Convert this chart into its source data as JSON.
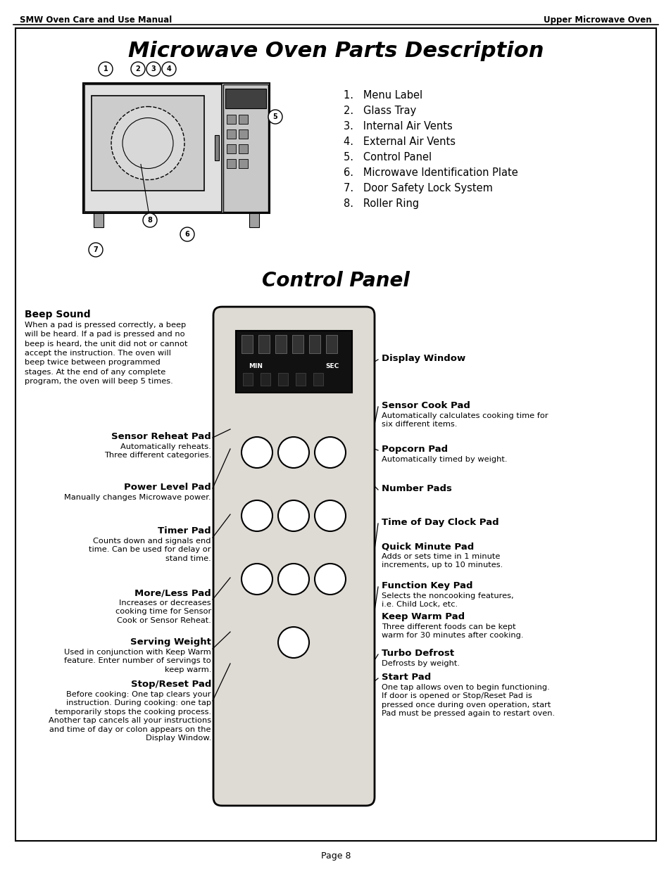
{
  "bg_color": "#ffffff",
  "header_left": "SMW Oven Care and Use Manual",
  "header_right": "Upper Microwave Oven",
  "main_title": "Microwave Oven Parts Description",
  "section2_title": "Control Panel",
  "footer": "Page 8",
  "parts_list": [
    "1.   Menu Label",
    "2.   Glass Tray",
    "3.   Internal Air Vents",
    "4.   External Air Vents",
    "5.   Control Panel",
    "6.   Microwave Identification Plate",
    "7.   Door Safety Lock System",
    "8.   Roller Ring"
  ],
  "beep_sound_title": "Beep Sound",
  "beep_sound_body": "When a pad is pressed correctly, a beep\nwill be heard. If a pad is pressed and no\nbeep is heard, the unit did not or cannot\naccept the instruction. The oven will\nbeep twice between programmed\nstages. At the end of any complete\nprogram, the oven will beep 5 times."
}
